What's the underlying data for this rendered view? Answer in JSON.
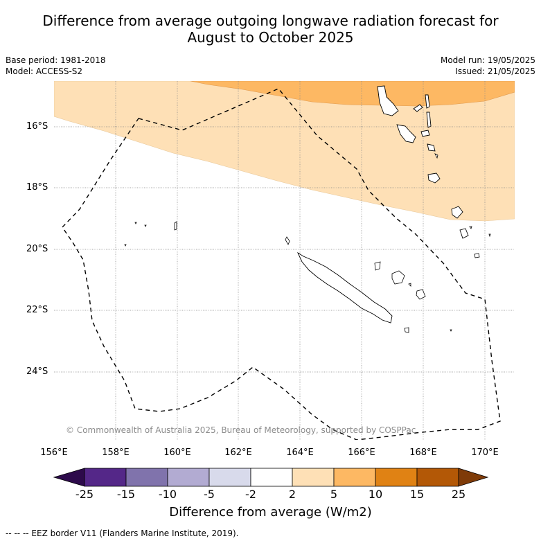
{
  "title": "Difference from average outgoing longwave radiation forecast for August to October 2025",
  "title_lines": [
    "Difference from average outgoing longwave radiation forecast for",
    "August to October 2025"
  ],
  "base_period": "Base period: 1981-2018",
  "model": "Model: ACCESS-S2",
  "model_run": "Model run: 19/05/2025",
  "issued": "Issued: 21/05/2025",
  "lat_labels": [
    "16°S",
    "18°S",
    "20°S",
    "22°S",
    "24°S"
  ],
  "lon_labels": [
    "156°E",
    "158°E",
    "160°E",
    "162°E",
    "164°E",
    "166°E",
    "168°E",
    "170°E"
  ],
  "copyright": "© Commonwealth of Australia 2025, Bureau of Meteorology, supported by COSPPac",
  "colorbar": {
    "ticks": [
      "-25",
      "-15",
      "-10",
      "-5",
      "-2",
      "2",
      "5",
      "10",
      "15",
      "25"
    ],
    "label": "Difference from average (W/m2)",
    "colors": [
      "#2d0a4b",
      "#542788",
      "#8073ac",
      "#b2abd2",
      "#d8daeb",
      "#ffffff",
      "#fee0b6",
      "#fdb863",
      "#e08214",
      "#b35806",
      "#7f3b08"
    ]
  },
  "footnote": "--  --  -- EEZ border V11 (Flanders Marine Institute, 2019).",
  "map_colors": {
    "band_2_5": "#fee0b6",
    "band_5_10": "#fdb863",
    "neutral": "#ffffff"
  }
}
